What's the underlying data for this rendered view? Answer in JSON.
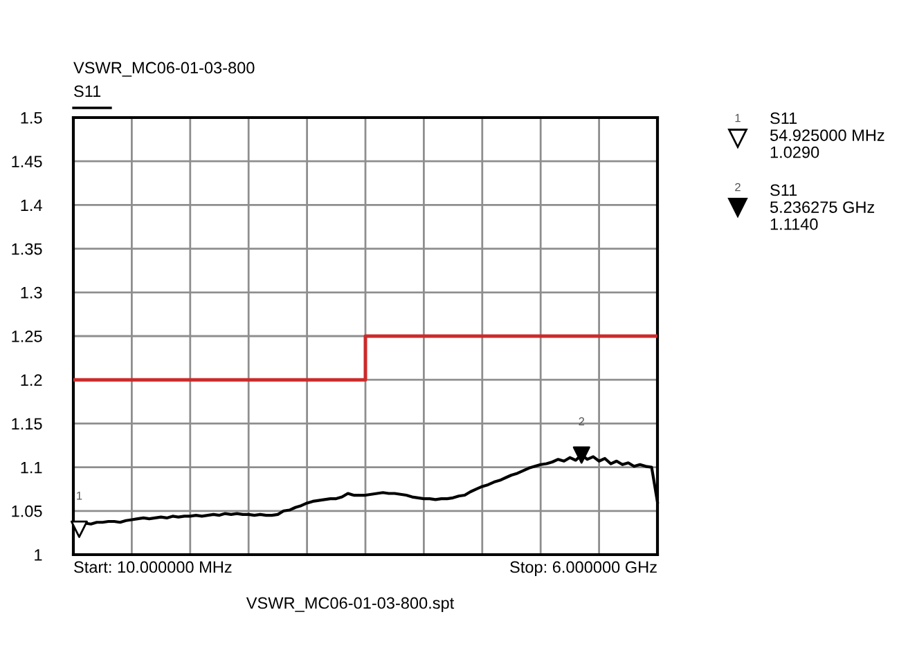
{
  "chart_data": {
    "type": "line",
    "title": "VSWR_MC06-01-03-800",
    "categories": [
      null,
      null,
      null,
      null,
      null,
      null,
      null,
      null,
      null,
      null,
      null,
      null,
      null,
      null,
      null,
      null,
      null,
      null,
      null,
      null,
      null,
      null,
      null,
      null,
      null,
      null,
      null,
      null,
      null,
      null,
      null,
      null,
      null,
      null,
      null,
      null,
      null,
      null,
      null,
      null,
      null,
      null,
      null,
      null,
      null,
      null,
      null,
      null,
      null,
      null,
      null,
      null,
      null,
      null,
      null,
      null,
      null,
      null,
      null,
      null,
      null,
      null,
      null,
      null,
      null,
      null,
      null,
      null,
      null,
      null,
      null,
      null,
      null,
      null,
      null,
      null,
      null,
      null,
      null,
      null,
      null,
      null,
      null,
      null,
      null,
      null,
      null,
      null,
      null,
      null,
      null,
      null,
      null,
      null,
      null,
      null,
      null,
      null,
      null,
      null,
      null
    ],
    "series": [
      {
        "name": "S11",
        "color": "#000000",
        "values": [
          1.038,
          1.029,
          1.036,
          1.035,
          1.037,
          1.037,
          1.038,
          1.038,
          1.037,
          1.039,
          1.04,
          1.041,
          1.042,
          1.041,
          1.042,
          1.043,
          1.042,
          1.044,
          1.043,
          1.044,
          1.044,
          1.045,
          1.044,
          1.045,
          1.046,
          1.045,
          1.047,
          1.046,
          1.047,
          1.046,
          1.046,
          1.045,
          1.046,
          1.045,
          1.045,
          1.046,
          1.05,
          1.051,
          1.054,
          1.056,
          1.059,
          1.061,
          1.062,
          1.063,
          1.064,
          1.064,
          1.066,
          1.07,
          1.068,
          1.068,
          1.068,
          1.069,
          1.07,
          1.071,
          1.07,
          1.07,
          1.069,
          1.068,
          1.066,
          1.065,
          1.064,
          1.064,
          1.063,
          1.064,
          1.064,
          1.065,
          1.067,
          1.068,
          1.072,
          1.075,
          1.078,
          1.08,
          1.083,
          1.085,
          1.088,
          1.091,
          1.093,
          1.096,
          1.099,
          1.101,
          1.103,
          1.104,
          1.106,
          1.109,
          1.107,
          1.111,
          1.108,
          1.114,
          1.109,
          1.112,
          1.107,
          1.11,
          1.104,
          1.107,
          1.103,
          1.105,
          1.101,
          1.103,
          1.101,
          1.1,
          1.06
        ]
      },
      {
        "type": "step",
        "color": "#cc2a2a",
        "values": [
          1.2,
          1.2,
          1.2,
          1.2,
          1.2,
          1.2,
          1.2,
          1.2,
          1.2,
          1.2,
          1.2,
          1.2,
          1.2,
          1.2,
          1.2,
          1.2,
          1.2,
          1.2,
          1.2,
          1.2,
          1.2,
          1.2,
          1.2,
          1.2,
          1.2,
          1.2,
          1.2,
          1.2,
          1.2,
          1.2,
          1.2,
          1.2,
          1.2,
          1.2,
          1.2,
          1.2,
          1.2,
          1.2,
          1.2,
          1.2,
          1.2,
          1.2,
          1.2,
          1.2,
          1.2,
          1.2,
          1.2,
          1.2,
          1.2,
          1.2,
          1.25,
          1.25,
          1.25,
          1.25,
          1.25,
          1.25,
          1.25,
          1.25,
          1.25,
          1.25,
          1.25,
          1.25,
          1.25,
          1.25,
          1.25,
          1.25,
          1.25,
          1.25,
          1.25,
          1.25,
          1.25,
          1.25,
          1.25,
          1.25,
          1.25,
          1.25,
          1.25,
          1.25,
          1.25,
          1.25,
          1.25,
          1.25,
          1.25,
          1.25,
          1.25,
          1.25,
          1.25,
          1.25,
          1.25,
          1.25,
          1.25,
          1.25,
          1.25,
          1.25,
          1.25,
          1.25,
          1.25,
          1.25,
          1.25,
          1.25,
          1.25
        ]
      },
      {
        "type": "scatter",
        "marker": "triangle",
        "color": "#ffffff",
        "values": [
          null,
          1.029,
          null,
          null,
          null,
          null,
          null,
          null,
          null,
          null,
          null,
          null,
          null,
          null,
          null,
          null,
          null,
          null,
          null,
          null,
          null,
          null,
          null,
          null,
          null,
          null,
          null,
          null,
          null,
          null,
          null,
          null,
          null,
          null,
          null,
          null,
          null,
          null,
          null,
          null,
          null,
          null,
          null,
          null,
          null,
          null,
          null,
          null,
          null,
          null,
          null,
          null,
          null,
          null,
          null,
          null,
          null,
          null,
          null,
          null,
          null,
          null,
          null,
          null,
          null,
          null,
          null,
          null,
          null,
          null,
          null,
          null,
          null,
          null,
          null,
          null,
          null,
          null,
          null,
          null,
          null,
          null,
          null,
          null,
          null,
          null,
          null,
          null,
          null,
          null,
          null,
          null,
          null,
          null,
          null,
          null,
          null,
          null,
          null,
          null,
          null
        ]
      },
      {
        "type": "scatter",
        "marker": "triangle",
        "color": "#000000",
        "values": [
          null,
          null,
          null,
          null,
          null,
          null,
          null,
          null,
          null,
          null,
          null,
          null,
          null,
          null,
          null,
          null,
          null,
          null,
          null,
          null,
          null,
          null,
          null,
          null,
          null,
          null,
          null,
          null,
          null,
          null,
          null,
          null,
          null,
          null,
          null,
          null,
          null,
          null,
          null,
          null,
          null,
          null,
          null,
          null,
          null,
          null,
          null,
          null,
          null,
          null,
          null,
          null,
          null,
          null,
          null,
          null,
          null,
          null,
          null,
          null,
          null,
          null,
          null,
          null,
          null,
          null,
          null,
          null,
          null,
          null,
          null,
          null,
          null,
          null,
          null,
          null,
          null,
          null,
          null,
          null,
          null,
          null,
          null,
          null,
          null,
          null,
          null,
          1.114,
          null,
          null,
          null,
          null,
          null,
          null,
          null,
          null,
          null,
          null,
          null,
          null,
          null
        ]
      }
    ],
    "ylim": [
      1,
      1.5
    ],
    "yticks": [
      1,
      1.05,
      1.1,
      1.15,
      1.2,
      1.25,
      1.3,
      1.35,
      1.4,
      1.45,
      1.5
    ],
    "tick_labels": "y",
    "grid": true,
    "annotations": [
      {
        "text": "1",
        "y": 1.029
      },
      {
        "text": "2",
        "y": 1.114
      },
      "Start: 10.000000 MHz",
      "Stop: 6.000000 GHz",
      "VSWR_MC06-01-03-800.spt",
      "1",
      "S11\n54.925000 MHz\n1.0290",
      "2",
      "S11\n5.236275 GHz\n1.1140"
    ]
  }
}
